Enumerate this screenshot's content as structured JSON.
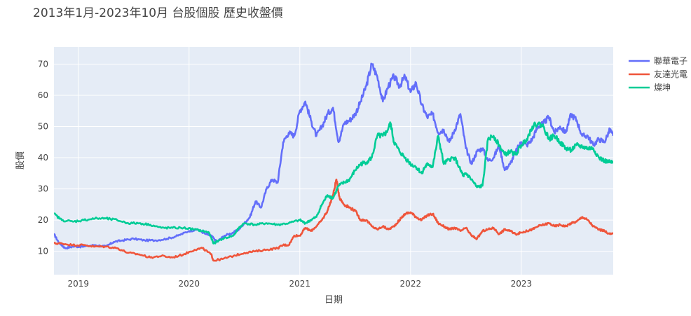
{
  "chart_data": {
    "type": "line",
    "title": "2013年1月-2023年10月 台股個股 歷史收盤價",
    "xlabel": "日期",
    "ylabel": "股價",
    "xlim": [
      2018.78,
      2023.83
    ],
    "ylim": [
      2.5,
      75.5
    ],
    "x_ticks": [
      2019,
      2020,
      2021,
      2022,
      2023
    ],
    "x_tick_labels": [
      "2019",
      "2020",
      "2021",
      "2022",
      "2023"
    ],
    "y_ticks": [
      10,
      20,
      30,
      40,
      50,
      60,
      70
    ],
    "y_tick_labels": [
      "10",
      "20",
      "30",
      "40",
      "50",
      "60",
      "70"
    ],
    "grid": true,
    "legend_position": "top-right",
    "plot_bg": "#E5ECF6",
    "series": [
      {
        "name": "聯華電子",
        "color": "#636EFA",
        "x": [
          2018.78,
          2018.82,
          2018.88,
          2018.95,
          2019.05,
          2019.15,
          2019.25,
          2019.32,
          2019.4,
          2019.5,
          2019.6,
          2019.7,
          2019.8,
          2019.9,
          2020.0,
          2020.08,
          2020.15,
          2020.2,
          2020.25,
          2020.32,
          2020.4,
          2020.45,
          2020.5,
          2020.55,
          2020.6,
          2020.65,
          2020.7,
          2020.75,
          2020.8,
          2020.85,
          2020.9,
          2020.95,
          2021.0,
          2021.05,
          2021.1,
          2021.15,
          2021.2,
          2021.25,
          2021.3,
          2021.35,
          2021.4,
          2021.45,
          2021.5,
          2021.55,
          2021.6,
          2021.65,
          2021.7,
          2021.75,
          2021.8,
          2021.85,
          2021.9,
          2021.95,
          2022.0,
          2022.05,
          2022.1,
          2022.15,
          2022.2,
          2022.25,
          2022.3,
          2022.35,
          2022.4,
          2022.45,
          2022.5,
          2022.55,
          2022.6,
          2022.65,
          2022.7,
          2022.75,
          2022.8,
          2022.85,
          2022.9,
          2022.95,
          2023.0,
          2023.05,
          2023.1,
          2023.15,
          2023.2,
          2023.25,
          2023.3,
          2023.35,
          2023.4,
          2023.45,
          2023.5,
          2023.55,
          2023.6,
          2023.65,
          2023.7,
          2023.75,
          2023.8,
          2023.83
        ],
        "y": [
          15.5,
          13.0,
          11.0,
          11.5,
          11.5,
          12.0,
          11.5,
          13.0,
          13.5,
          14.0,
          13.5,
          13.5,
          14.0,
          15.0,
          16.5,
          17.0,
          15.5,
          15.0,
          13.0,
          15.0,
          16.0,
          17.0,
          19.0,
          21.0,
          26.0,
          24.0,
          30.0,
          33.0,
          32.0,
          45.0,
          48.0,
          47.0,
          55.0,
          58.0,
          52.0,
          47.0,
          50.0,
          54.0,
          56.0,
          45.0,
          51.0,
          52.0,
          54.0,
          58.0,
          63.0,
          70.0,
          66.0,
          58.0,
          63.0,
          66.0,
          63.0,
          66.0,
          61.0,
          64.0,
          57.0,
          53.0,
          54.0,
          48.0,
          49.0,
          45.0,
          49.0,
          54.0,
          43.0,
          38.0,
          42.0,
          43.0,
          39.0,
          40.0,
          44.0,
          36.0,
          38.0,
          42.0,
          45.0,
          44.0,
          46.0,
          50.0,
          51.0,
          53.0,
          48.0,
          50.0,
          48.0,
          54.0,
          52.0,
          47.0,
          47.0,
          44.0,
          46.0,
          45.0,
          49.0,
          47.0
        ]
      },
      {
        "name": "友達光電",
        "color": "#EF553B",
        "x": [
          2018.78,
          2018.85,
          2018.95,
          2019.05,
          2019.15,
          2019.25,
          2019.35,
          2019.45,
          2019.55,
          2019.65,
          2019.75,
          2019.85,
          2019.95,
          2020.05,
          2020.12,
          2020.2,
          2020.22,
          2020.3,
          2020.4,
          2020.5,
          2020.6,
          2020.7,
          2020.8,
          2020.85,
          2020.9,
          2020.95,
          2021.0,
          2021.05,
          2021.1,
          2021.15,
          2021.2,
          2021.25,
          2021.3,
          2021.33,
          2021.36,
          2021.4,
          2021.45,
          2021.5,
          2021.55,
          2021.6,
          2021.65,
          2021.7,
          2021.75,
          2021.8,
          2021.85,
          2021.9,
          2021.95,
          2022.0,
          2022.05,
          2022.1,
          2022.15,
          2022.2,
          2022.25,
          2022.3,
          2022.35,
          2022.4,
          2022.45,
          2022.5,
          2022.55,
          2022.6,
          2022.65,
          2022.7,
          2022.75,
          2022.8,
          2022.85,
          2022.9,
          2022.95,
          2023.0,
          2023.05,
          2023.1,
          2023.15,
          2023.2,
          2023.25,
          2023.3,
          2023.35,
          2023.4,
          2023.45,
          2023.5,
          2023.55,
          2023.6,
          2023.65,
          2023.7,
          2023.75,
          2023.8,
          2023.83
        ],
        "y": [
          12.5,
          12.5,
          12.0,
          12.0,
          11.5,
          11.5,
          11.0,
          9.5,
          9.0,
          8.0,
          8.5,
          8.0,
          9.0,
          10.5,
          11.0,
          9.0,
          7.0,
          7.5,
          8.5,
          9.5,
          10.0,
          10.5,
          11.0,
          12.0,
          12.0,
          15.0,
          15.0,
          17.5,
          16.5,
          18.0,
          20.0,
          23.0,
          28.0,
          33.0,
          27.0,
          25.0,
          24.0,
          23.0,
          20.0,
          20.0,
          18.0,
          17.0,
          18.0,
          17.0,
          18.0,
          20.0,
          22.0,
          22.5,
          21.0,
          20.0,
          21.5,
          22.0,
          19.0,
          18.0,
          17.0,
          17.5,
          16.5,
          17.5,
          15.0,
          14.0,
          16.5,
          17.0,
          17.5,
          15.5,
          17.0,
          16.5,
          15.5,
          16.0,
          16.5,
          17.0,
          18.0,
          18.5,
          19.0,
          18.0,
          18.5,
          18.0,
          19.0,
          19.5,
          21.0,
          20.0,
          18.0,
          17.0,
          16.5,
          15.5,
          15.5
        ]
      },
      {
        "name": "燦坤",
        "color": "#00CC96",
        "x": [
          2018.78,
          2018.85,
          2018.95,
          2019.05,
          2019.15,
          2019.25,
          2019.35,
          2019.45,
          2019.55,
          2019.65,
          2019.75,
          2019.85,
          2019.95,
          2020.05,
          2020.12,
          2020.18,
          2020.22,
          2020.3,
          2020.4,
          2020.45,
          2020.5,
          2020.6,
          2020.7,
          2020.8,
          2020.9,
          2021.0,
          2021.05,
          2021.1,
          2021.15,
          2021.2,
          2021.25,
          2021.3,
          2021.35,
          2021.4,
          2021.45,
          2021.5,
          2021.55,
          2021.6,
          2021.65,
          2021.7,
          2021.75,
          2021.78,
          2021.82,
          2021.85,
          2021.9,
          2021.95,
          2022.0,
          2022.05,
          2022.1,
          2022.13,
          2022.16,
          2022.2,
          2022.25,
          2022.3,
          2022.35,
          2022.4,
          2022.45,
          2022.48,
          2022.5,
          2022.55,
          2022.6,
          2022.65,
          2022.7,
          2022.75,
          2022.8,
          2022.85,
          2022.9,
          2022.95,
          2023.0,
          2023.05,
          2023.1,
          2023.15,
          2023.2,
          2023.25,
          2023.3,
          2023.35,
          2023.4,
          2023.45,
          2023.5,
          2023.55,
          2023.6,
          2023.65,
          2023.7,
          2023.75,
          2023.8,
          2023.83
        ],
        "y": [
          22.0,
          20.0,
          19.5,
          20.0,
          20.5,
          20.5,
          20.0,
          19.0,
          19.0,
          18.5,
          17.5,
          17.5,
          17.5,
          17.0,
          16.5,
          16.0,
          12.5,
          14.0,
          15.0,
          17.5,
          19.0,
          18.5,
          19.0,
          18.5,
          19.0,
          20.0,
          19.0,
          20.0,
          21.0,
          25.0,
          28.0,
          27.0,
          31.0,
          32.0,
          33.0,
          36.0,
          38.0,
          38.5,
          40.0,
          47.0,
          47.0,
          48.0,
          51.0,
          45.0,
          42.0,
          40.0,
          38.0,
          37.0,
          35.0,
          37.0,
          38.0,
          37.0,
          47.0,
          38.0,
          39.5,
          40.0,
          36.0,
          34.0,
          35.0,
          33.0,
          30.5,
          31.0,
          46.0,
          47.0,
          44.0,
          41.0,
          42.0,
          41.0,
          44.0,
          46.0,
          50.0,
          51.0,
          50.0,
          46.0,
          47.0,
          45.0,
          43.0,
          42.5,
          44.0,
          43.5,
          43.0,
          43.0,
          40.0,
          39.0,
          38.5,
          38.5
        ]
      }
    ]
  }
}
